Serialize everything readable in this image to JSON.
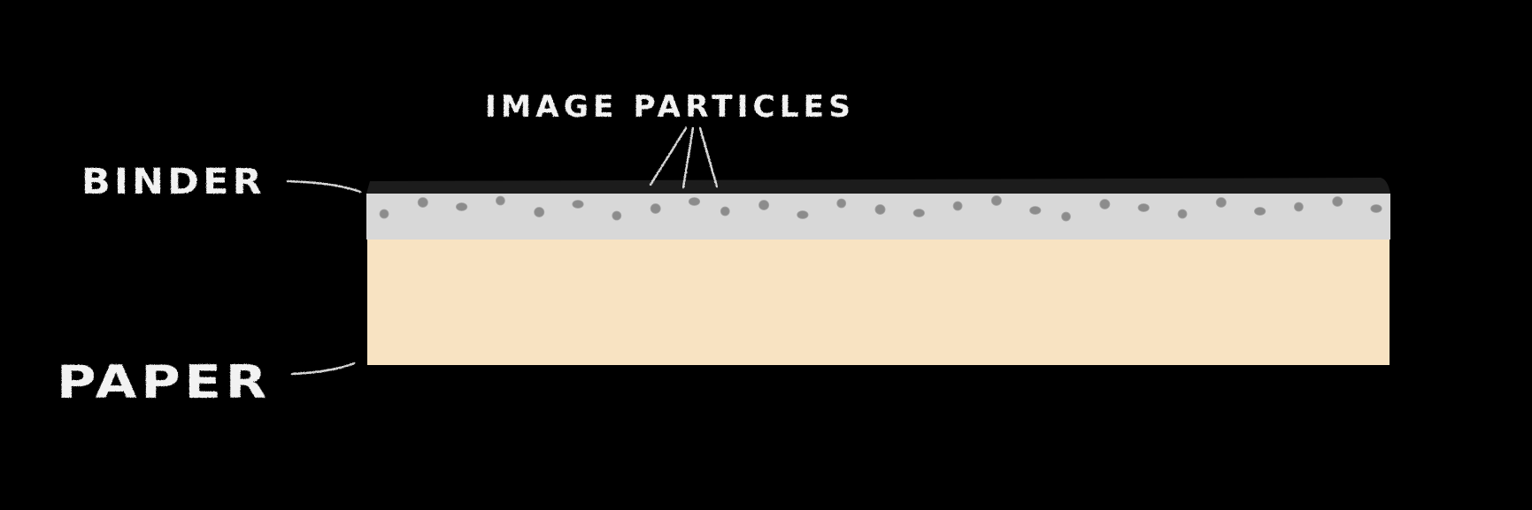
{
  "labels": {
    "binder": "BINDER",
    "image_particles": "IMAGE PARTICLES",
    "paper": "PAPER"
  },
  "colors": {
    "background": "#000000",
    "paper": "#f8e3c2",
    "binder": "#d8d8d8",
    "binder_top_edge": "#1c1c1c",
    "particle": "#8c8c8c",
    "chalk_text": "#f2f2f2"
  },
  "particle_count": 27
}
